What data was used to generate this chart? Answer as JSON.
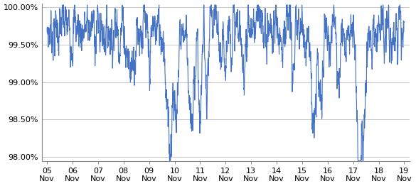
{
  "x_labels": [
    "05\nNov",
    "06\nNov",
    "07\nNov",
    "08\nNov",
    "09\nNov",
    "10\nNov",
    "11\nNov",
    "12\nNov",
    "13\nNov",
    "14\nNov",
    "15\nNov",
    "16\nNov",
    "17\nNov",
    "18\nNov",
    "19\nNov"
  ],
  "ylim": [
    0.9795,
    1.0005
  ],
  "yticks": [
    0.98,
    0.985,
    0.99,
    0.995,
    1.0
  ],
  "ytick_labels": [
    "98.00%",
    "98.50%",
    "99.00%",
    "99.50%",
    "100.00%"
  ],
  "line_color": "#4472C4",
  "line_width": 0.8,
  "background_color": "#ffffff",
  "grid_color": "#b0b0b0",
  "n_points": 2100,
  "seed": 7,
  "tick_fontsize": 8,
  "spine_color": "#888888"
}
